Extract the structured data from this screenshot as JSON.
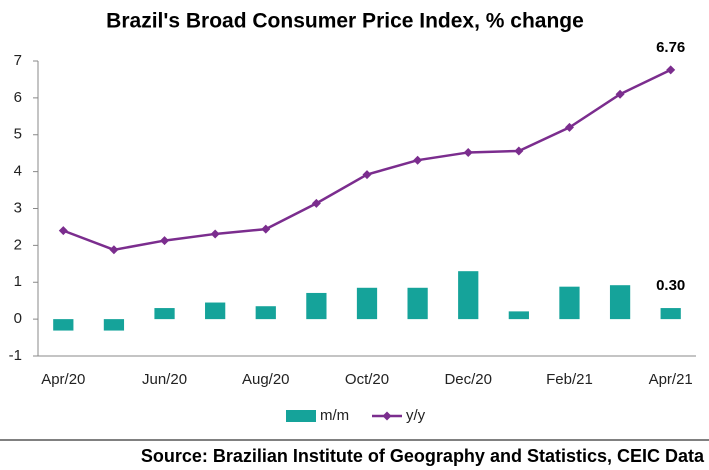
{
  "chart_data": {
    "type": "bar-line",
    "title": "Brazil's Broad Consumer Price Index, % change",
    "source": "Source: Brazilian Institute of Geography and Statistics, CEIC Data",
    "categories": [
      "Apr/20",
      null,
      "Jun/20",
      null,
      "Aug/20",
      null,
      "Oct/20",
      null,
      "Dec/20",
      null,
      "Feb/21",
      null,
      "Apr/21"
    ],
    "series": [
      {
        "name": "m/m",
        "type": "bar",
        "color": "#15a39a",
        "values": [
          -0.31,
          -0.31,
          0.3,
          0.45,
          0.35,
          0.71,
          0.85,
          0.85,
          1.3,
          0.21,
          0.88,
          0.92,
          0.3
        ],
        "value_labels": [
          null,
          null,
          null,
          null,
          null,
          null,
          null,
          null,
          null,
          null,
          null,
          null,
          "0.30"
        ]
      },
      {
        "name": "y/y",
        "type": "line",
        "color": "#7b2d8e",
        "values": [
          2.4,
          1.88,
          2.13,
          2.31,
          2.44,
          3.14,
          3.92,
          4.31,
          4.52,
          4.56,
          5.2,
          6.1,
          6.76
        ],
        "value_labels": [
          null,
          null,
          null,
          null,
          null,
          null,
          null,
          null,
          null,
          null,
          null,
          null,
          "6.76"
        ]
      }
    ],
    "ylim": [
      -1,
      7
    ],
    "yticks": [
      -1,
      0,
      1,
      2,
      3,
      4,
      5,
      6,
      7
    ],
    "grid": false
  }
}
